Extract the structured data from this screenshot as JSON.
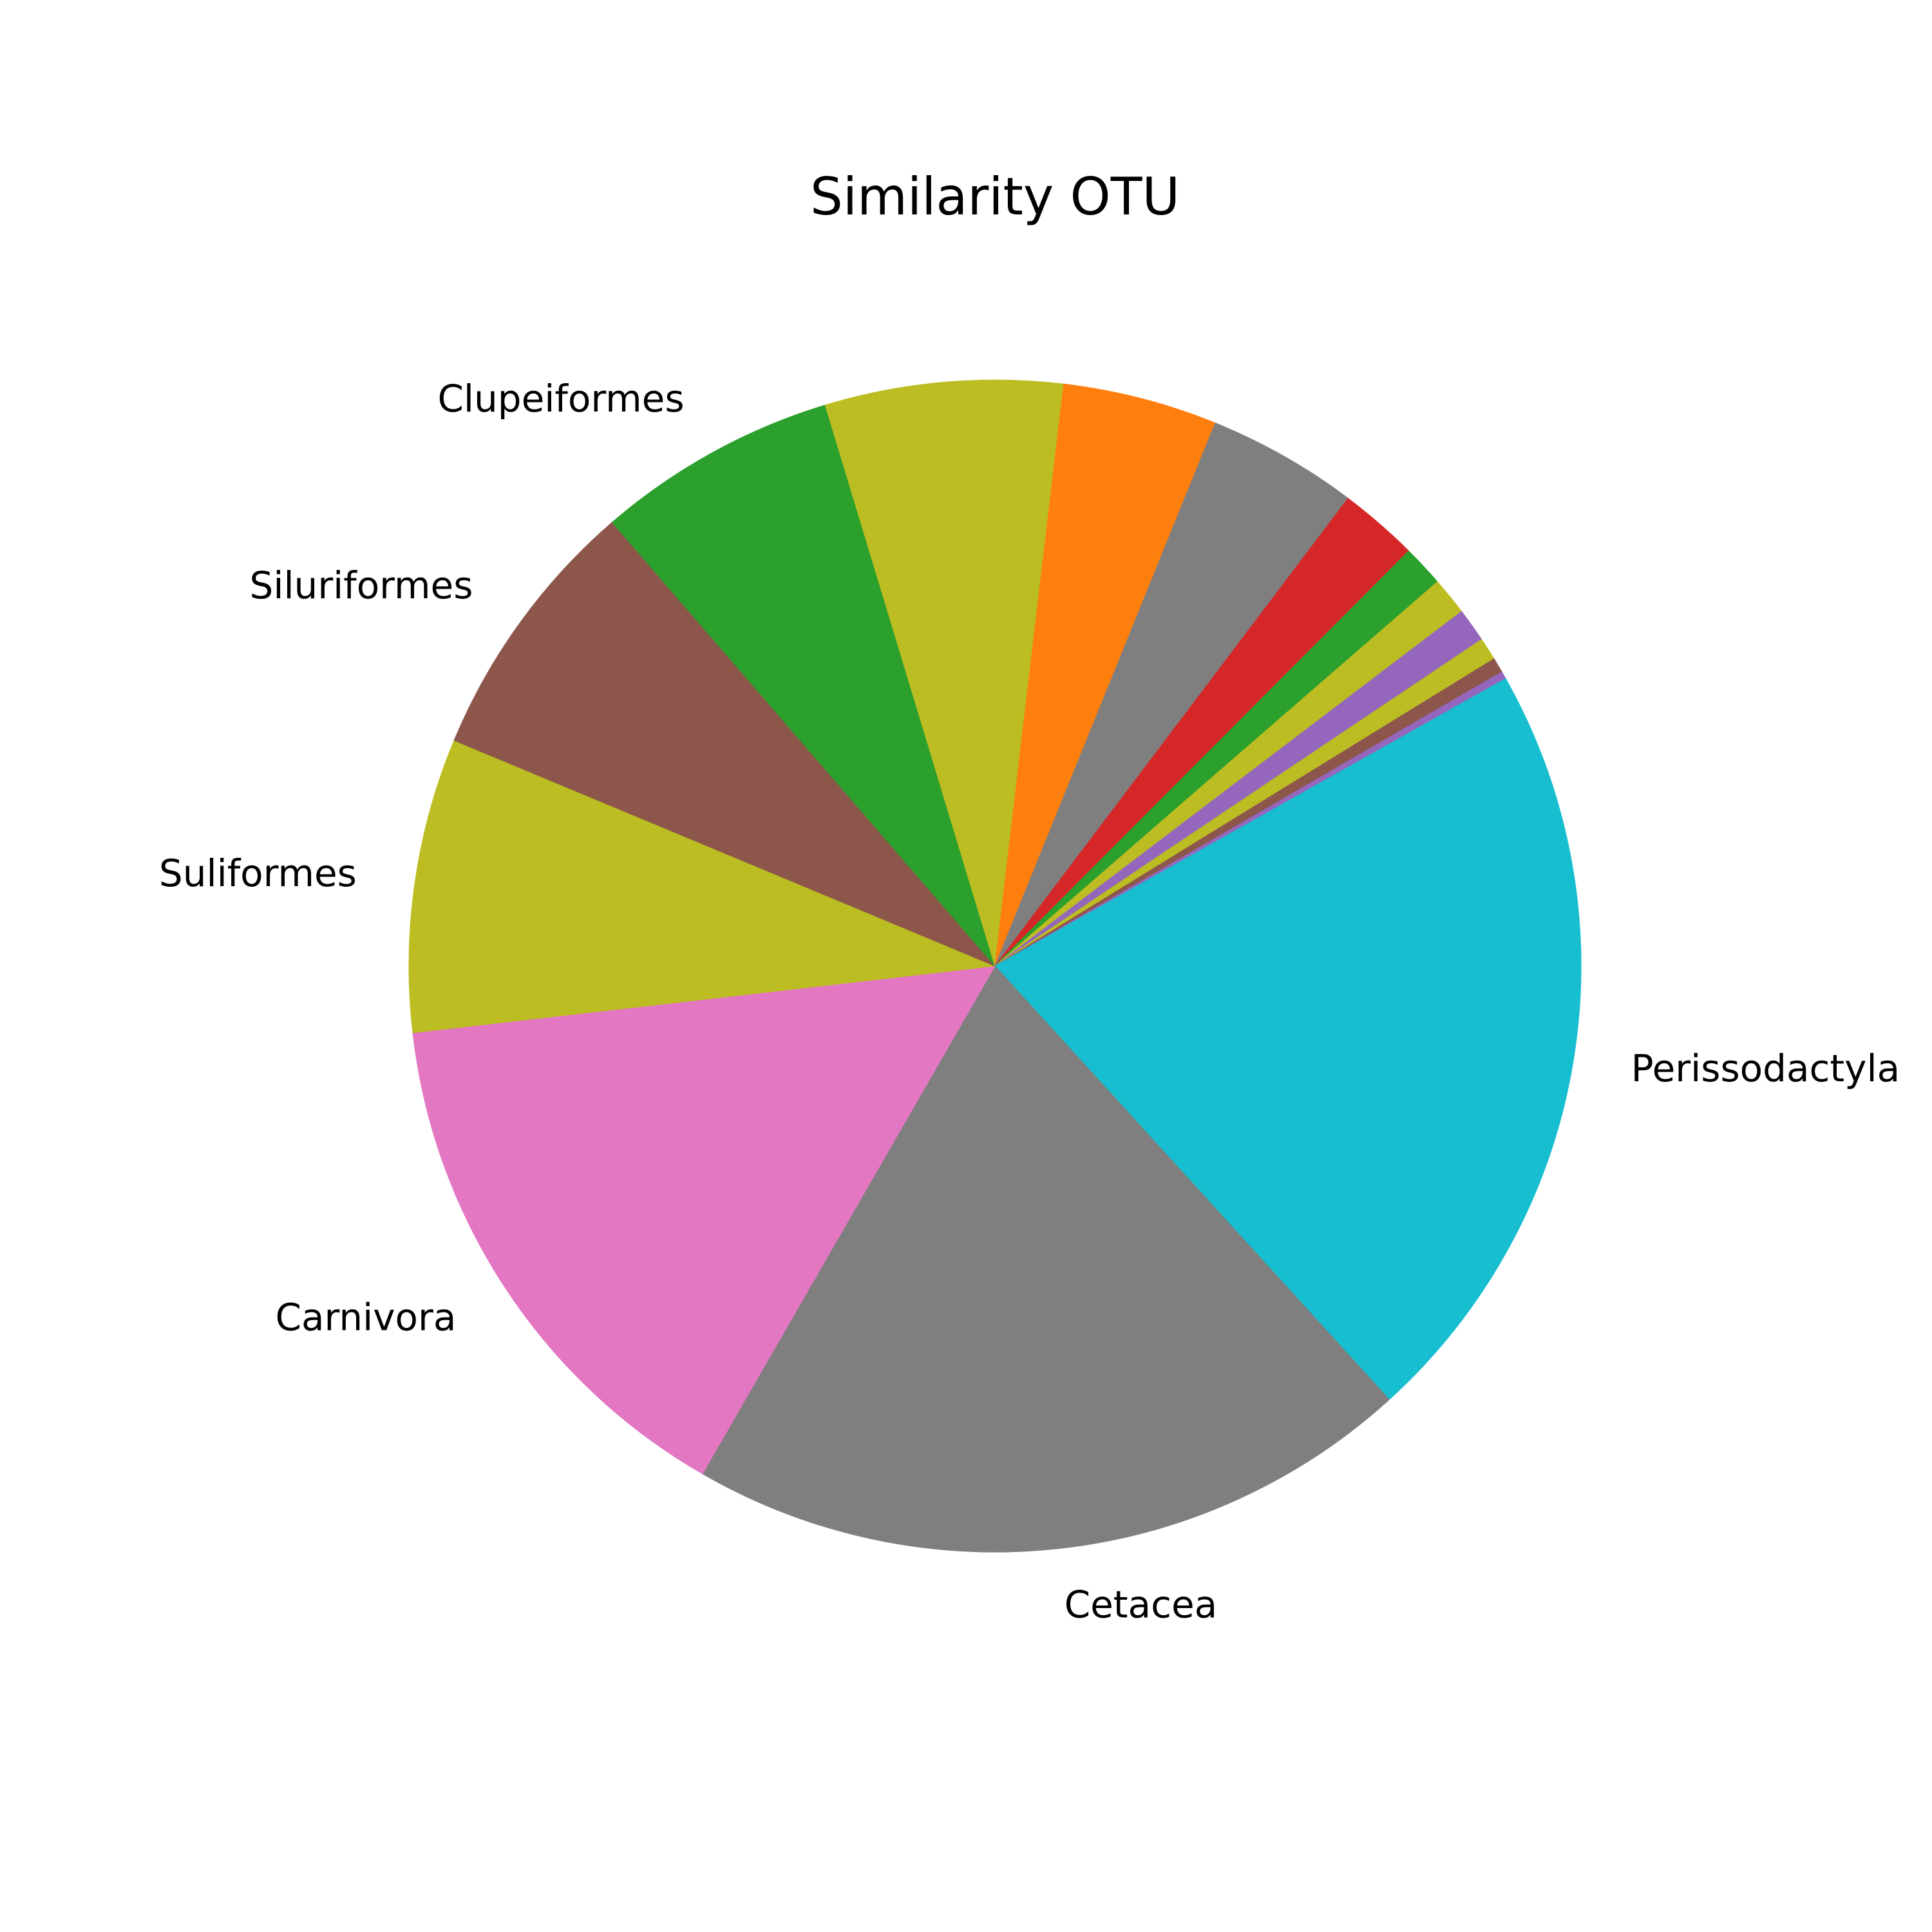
{
  "chart_data": {
    "type": "pie",
    "title": "Similarity OTU",
    "slices": [
      {
        "label": "Perissodactyla",
        "value": 20.5,
        "color": "#17becf"
      },
      {
        "label": "Cetacea",
        "value": 19.3,
        "color": "#7f7f7f"
      },
      {
        "label": "Carnivora",
        "value": 14.3,
        "color": "#e377c2"
      },
      {
        "label": "Suliformes",
        "value": 7.8,
        "color": "#bcbd22"
      },
      {
        "label": "Siluriformes",
        "value": 7.1,
        "color": "#8c564b"
      },
      {
        "label": "Clupeiformes",
        "value": 6.4,
        "color": "#2ca02c"
      },
      {
        "label": "",
        "value": 6.3,
        "color": "#bcbd22"
      },
      {
        "label": "",
        "value": 4.1,
        "color": "#ff7f0e"
      },
      {
        "label": "",
        "value": 4.0,
        "color": "#7f7f7f"
      },
      {
        "label": "",
        "value": 2.1,
        "color": "#d62728"
      },
      {
        "label": "",
        "value": 1.1,
        "color": "#2ca02c"
      },
      {
        "label": "",
        "value": 1.0,
        "color": "#bcbd22"
      },
      {
        "label": "",
        "value": 0.9,
        "color": "#9467bd"
      },
      {
        "label": "",
        "value": 0.6,
        "color": "#bcbd22"
      },
      {
        "label": "",
        "value": 0.4,
        "color": "#8c564b"
      },
      {
        "label": "",
        "value": 0.2,
        "color": "#9467bd"
      },
      {
        "label": "",
        "value": 0.1,
        "color": "#17becf"
      }
    ],
    "start_angle_deg": 29,
    "direction": "clockwise",
    "legend": "none"
  }
}
